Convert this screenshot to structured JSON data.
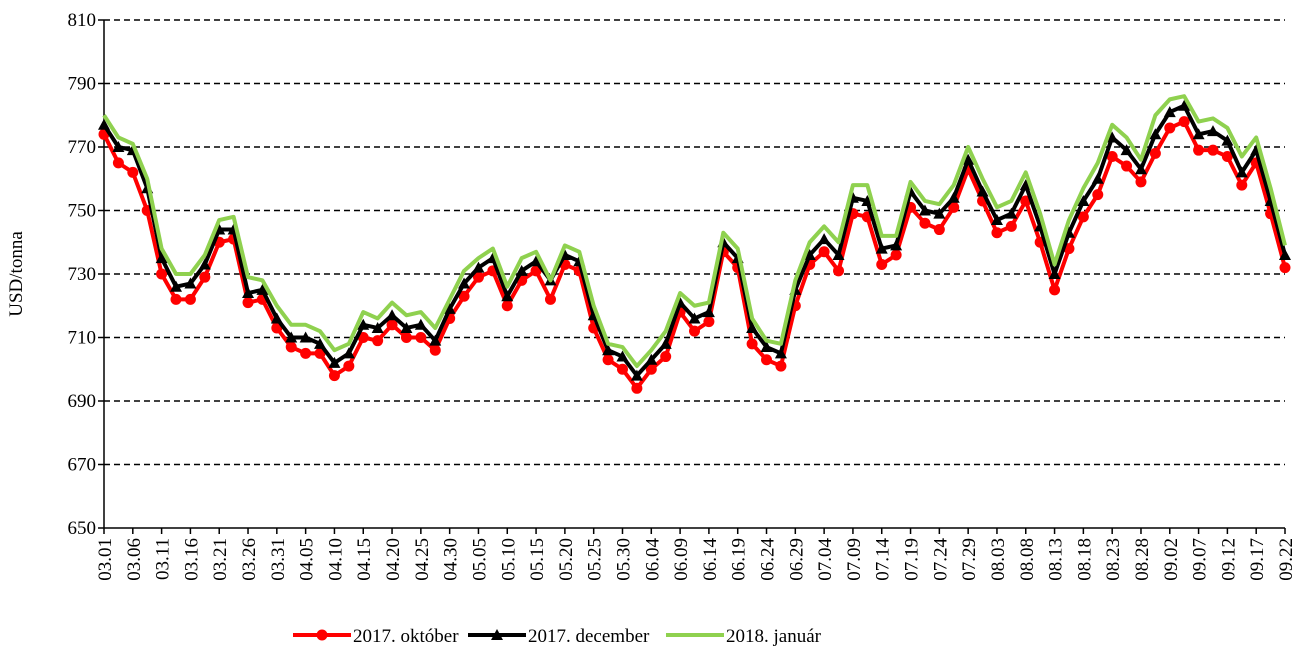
{
  "chart_data": {
    "type": "line",
    "y_label": "USD/tonna",
    "categories": [
      "03.01",
      null,
      "03.06",
      null,
      "03.11",
      null,
      "03.16",
      null,
      "03.21",
      null,
      "03.26",
      null,
      "03.31",
      null,
      "04.05",
      null,
      "04.10",
      null,
      "04.15",
      null,
      "04.20",
      null,
      "04.25",
      null,
      "04.30",
      null,
      "05.05",
      null,
      "05.10",
      null,
      "05.15",
      null,
      "05.20",
      null,
      "05.25",
      null,
      "05.30",
      null,
      "06.04",
      null,
      "06.09",
      null,
      "06.14",
      null,
      "06.19",
      null,
      "06.24",
      null,
      "06.29",
      null,
      "07.04",
      null,
      "07.09",
      null,
      "07.14",
      null,
      "07.19",
      null,
      "07.24",
      null,
      "07.29",
      null,
      "08.03",
      null,
      "08.08",
      null,
      "08.13",
      null,
      "08.18",
      null,
      "08.23",
      null,
      "08.28",
      null,
      "09.02",
      null,
      "09.07",
      null,
      "09.12",
      null,
      "09.17",
      null,
      "09.22"
    ],
    "series": [
      {
        "name": "2017. október",
        "color": "#ff0000",
        "marker": "circle",
        "values": [
          774,
          765,
          762,
          750,
          730,
          722,
          722,
          729,
          740,
          741,
          721,
          722,
          713,
          707,
          705,
          705,
          698,
          701,
          710,
          709,
          714,
          710,
          710,
          706,
          716,
          723,
          729,
          731,
          720,
          728,
          731,
          722,
          733,
          731,
          713,
          703,
          700,
          694,
          700,
          704,
          718,
          712,
          715,
          737,
          732,
          708,
          703,
          701,
          720,
          733,
          737,
          731,
          749,
          748,
          733,
          736,
          751,
          746,
          744,
          751,
          763,
          753,
          743,
          745,
          753,
          740,
          725,
          738,
          748,
          755,
          767,
          764,
          759,
          768,
          776,
          778,
          769,
          769,
          767,
          758,
          765,
          749,
          732
        ]
      },
      {
        "name": "2017. december",
        "color": "#000000",
        "marker": "triangle",
        "values": [
          777,
          770,
          769,
          757,
          735,
          726,
          727,
          733,
          744,
          744,
          724,
          725,
          716,
          710,
          710,
          708,
          702,
          705,
          714,
          713,
          717,
          713,
          714,
          709,
          719,
          727,
          732,
          735,
          723,
          731,
          734,
          728,
          736,
          734,
          717,
          706,
          704,
          698,
          703,
          708,
          721,
          716,
          718,
          740,
          735,
          713,
          707,
          705,
          725,
          736,
          741,
          736,
          754,
          753,
          738,
          739,
          756,
          750,
          749,
          754,
          766,
          756,
          747,
          749,
          758,
          745,
          730,
          743,
          753,
          760,
          773,
          769,
          763,
          774,
          781,
          783,
          774,
          775,
          772,
          762,
          769,
          753,
          736
        ]
      },
      {
        "name": "2018. január",
        "color": "#8fd14f",
        "marker": "none",
        "values": [
          780,
          773,
          771,
          760,
          738,
          730,
          730,
          736,
          747,
          748,
          729,
          728,
          720,
          714,
          714,
          712,
          706,
          708,
          718,
          716,
          721,
          717,
          718,
          713,
          722,
          731,
          735,
          738,
          726,
          735,
          737,
          728,
          739,
          737,
          720,
          708,
          707,
          701,
          706,
          712,
          724,
          720,
          721,
          743,
          738,
          716,
          709,
          708,
          728,
          740,
          745,
          740,
          758,
          758,
          742,
          742,
          759,
          753,
          752,
          758,
          770,
          760,
          751,
          753,
          762,
          749,
          733,
          747,
          757,
          765,
          777,
          773,
          766,
          780,
          785,
          786,
          778,
          779,
          776,
          767,
          773,
          757,
          739
        ]
      }
    ],
    "ylim": [
      650,
      810
    ],
    "yticks": [
      650,
      670,
      690,
      710,
      730,
      750,
      770,
      790,
      810
    ],
    "grid": true,
    "legend": "bottom"
  }
}
